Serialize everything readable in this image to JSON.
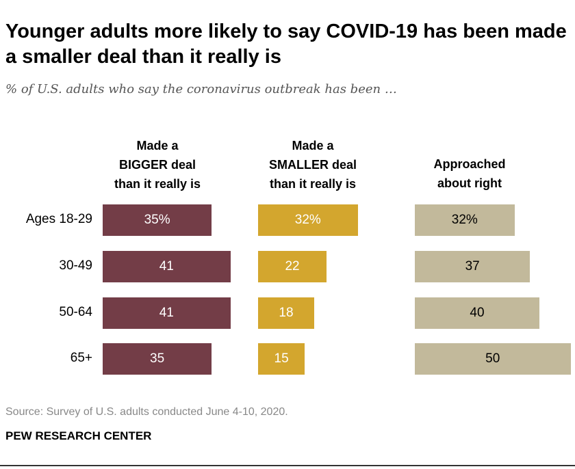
{
  "chart_data": {
    "type": "bar",
    "title": "Younger adults more likely to say COVID-19 has been made a smaller deal than it really is",
    "subtitle": "% of U.S. adults who say the coronavirus outbreak has been …",
    "categories": [
      "Ages 18-29",
      "30-49",
      "50-64",
      "65+"
    ],
    "series": [
      {
        "name": "Made a BIGGER deal than it really is",
        "name_lines": [
          "Made a",
          "BIGGER deal",
          "than it really is"
        ],
        "values": [
          35,
          41,
          41,
          35
        ],
        "color": "#733d47",
        "text_color": "#ffffff"
      },
      {
        "name": "Made a SMALLER deal than it really is",
        "name_lines": [
          "Made a",
          "SMALLER deal",
          "than it really is"
        ],
        "values": [
          32,
          22,
          18,
          15
        ],
        "color": "#d3a62e",
        "text_color": "#ffffff"
      },
      {
        "name": "Approached about right",
        "name_lines": [
          "Approached",
          "about right"
        ],
        "values": [
          32,
          37,
          40,
          50
        ],
        "color": "#c2b99b",
        "text_color": "#000000"
      }
    ],
    "first_row_suffix": "%",
    "xlim": [
      0,
      50
    ]
  },
  "footer": {
    "source": "Source: Survey of U.S. adults conducted June 4-10, 2020.",
    "brand": "PEW RESEARCH CENTER"
  }
}
